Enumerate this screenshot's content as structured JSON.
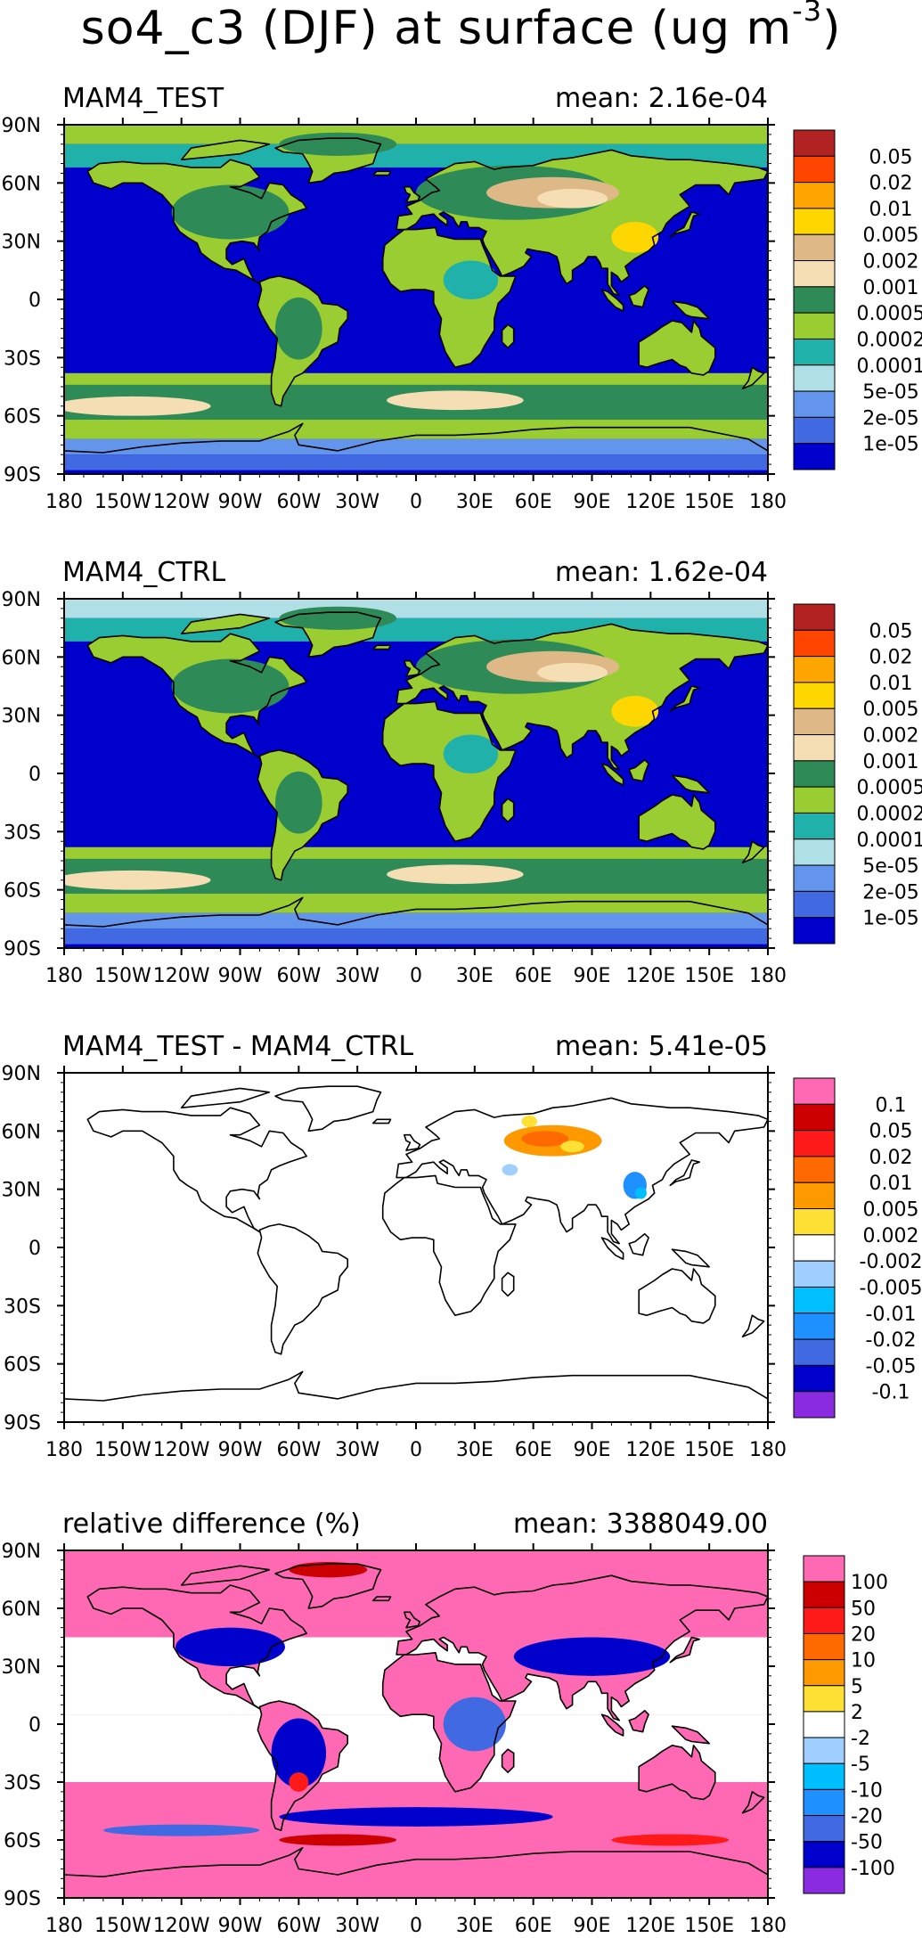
{
  "title": {
    "prefix": "so4_c3 (DJF) at surface (ug m",
    "exponent": "-3",
    "suffix": ")"
  },
  "colors": {
    "ocean_low": "#0000cd",
    "text": "#000000",
    "panel_border": "#000000"
  },
  "axes": {
    "lat_ticks": [
      "90N",
      "60N",
      "30N",
      "0",
      "30S",
      "60S",
      "90S"
    ],
    "lon_ticks": [
      "180",
      "150W",
      "120W",
      "90W",
      "60W",
      "30W",
      "0",
      "30E",
      "60E",
      "90E",
      "120E",
      "150E",
      "180"
    ]
  },
  "chart_data": [
    {
      "type": "heatmap",
      "title": "MAM4_TEST",
      "mean_label": "mean: 2.16e-04",
      "mean": 0.000216,
      "xlim": [
        -180,
        180
      ],
      "ylim": [
        -90,
        90
      ],
      "colorbar": {
        "labels": [
          "0.05",
          "0.02",
          "0.01",
          "0.005",
          "0.002",
          "0.001",
          "0.0005",
          "0.0002",
          "0.0001",
          "5e-05",
          "2e-05",
          "1e-05"
        ],
        "colors": [
          "#b22222",
          "#ff4500",
          "#ffa500",
          "#ffd700",
          "#deb887",
          "#f5deb3",
          "#2e8b57",
          "#9acd32",
          "#20b2aa",
          "#b0e0e6",
          "#6495ed",
          "#4169e1",
          "#0000cd"
        ]
      }
    },
    {
      "type": "heatmap",
      "title": "MAM4_CTRL",
      "mean_label": "mean: 1.62e-04",
      "mean": 0.000162,
      "xlim": [
        -180,
        180
      ],
      "ylim": [
        -90,
        90
      ],
      "colorbar": {
        "labels": [
          "0.05",
          "0.02",
          "0.01",
          "0.005",
          "0.002",
          "0.001",
          "0.0005",
          "0.0002",
          "0.0001",
          "5e-05",
          "2e-05",
          "1e-05"
        ],
        "colors": [
          "#b22222",
          "#ff4500",
          "#ffa500",
          "#ffd700",
          "#deb887",
          "#f5deb3",
          "#2e8b57",
          "#9acd32",
          "#20b2aa",
          "#b0e0e6",
          "#6495ed",
          "#4169e1",
          "#0000cd"
        ]
      }
    },
    {
      "type": "heatmap",
      "title": "MAM4_TEST - MAM4_CTRL",
      "mean_label": "mean: 5.41e-05",
      "mean": 5.41e-05,
      "xlim": [
        -180,
        180
      ],
      "ylim": [
        -90,
        90
      ],
      "colorbar": {
        "labels": [
          "0.1",
          "0.05",
          "0.02",
          "0.01",
          "0.005",
          "0.002",
          "-0.002",
          "-0.005",
          "-0.01",
          "-0.02",
          "-0.05",
          "-0.1"
        ],
        "colors": [
          "#ff69b4",
          "#cc0000",
          "#ff1a1a",
          "#ff6a00",
          "#ff9900",
          "#ffe135",
          "#ffffff",
          "#a0cfff",
          "#00bfff",
          "#1e90ff",
          "#4169e1",
          "#0000cd",
          "#8a2be2"
        ]
      }
    },
    {
      "type": "heatmap",
      "title": "relative difference (%)",
      "mean_label": "mean: 3388049.00",
      "mean": 3388049.0,
      "xlim": [
        -180,
        180
      ],
      "ylim": [
        -90,
        90
      ],
      "colorbar": {
        "labels": [
          "100",
          "50",
          "20",
          "10",
          "5",
          "2",
          "-2",
          "-5",
          "-10",
          "-20",
          "-50",
          "-100"
        ],
        "colors": [
          "#ff69b4",
          "#cc0000",
          "#ff1a1a",
          "#ff6a00",
          "#ff9900",
          "#ffe135",
          "#ffffff",
          "#a0cfff",
          "#00bfff",
          "#1e90ff",
          "#4169e1",
          "#0000cd",
          "#8a2be2"
        ]
      }
    }
  ]
}
